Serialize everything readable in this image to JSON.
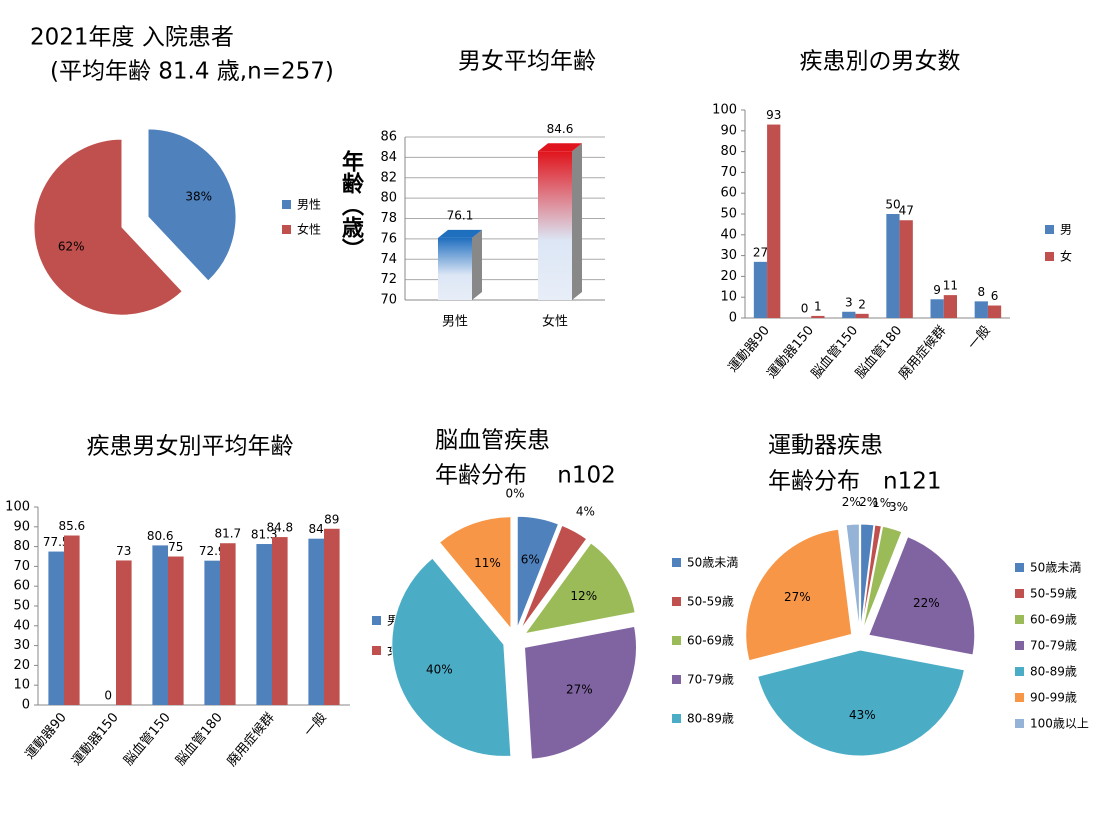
{
  "chart_data": [
    {
      "type": "pie",
      "title": "2021年度 入院患者",
      "subtitle": "(平均年齢 81.4 歳,n=257)",
      "categories": [
        "男性",
        "女性"
      ],
      "values": [
        38,
        62
      ],
      "value_labels": [
        "38%",
        "62%"
      ],
      "colors": [
        "#4f81bd",
        "#c0504d"
      ],
      "legend": "right"
    },
    {
      "type": "bar",
      "title": "男女平均年齢",
      "y_label": "年齢（歳）",
      "categories": [
        "男性",
        "女性"
      ],
      "values": [
        76.1,
        84.6
      ],
      "colors": [
        "#1f6fbf",
        "#e0141c"
      ],
      "ylim": [
        70,
        86
      ],
      "yticks": [
        70,
        72,
        74,
        76,
        78,
        80,
        82,
        84,
        86
      ],
      "grid": true
    },
    {
      "type": "bar",
      "title": "疾患別の男女数",
      "categories": [
        "運動器90",
        "運動器150",
        "脳血管150",
        "脳血管180",
        "廃用症候群",
        "一般"
      ],
      "series": [
        {
          "name": "男",
          "color": "#4f81bd",
          "values": [
            27,
            0,
            3,
            50,
            9,
            8
          ]
        },
        {
          "name": "女",
          "color": "#c0504d",
          "values": [
            93,
            1,
            2,
            47,
            11,
            6
          ]
        }
      ],
      "ylim": [
        0,
        100
      ],
      "yticks": [
        0,
        10,
        20,
        30,
        40,
        50,
        60,
        70,
        80,
        90,
        100
      ],
      "grid": false,
      "legend": "right"
    },
    {
      "type": "bar",
      "title": "疾患男女別平均年齢",
      "categories": [
        "運動器90",
        "運動器150",
        "脳血管150",
        "脳血管180",
        "廃用症候群",
        "一般"
      ],
      "series": [
        {
          "name": "男",
          "color": "#4f81bd",
          "values": [
            77.5,
            0,
            80.6,
            72.9,
            81.3,
            84
          ]
        },
        {
          "name": "女",
          "color": "#c0504d",
          "values": [
            85.6,
            73,
            75,
            81.7,
            84.8,
            89
          ]
        }
      ],
      "ylim": [
        0,
        100
      ],
      "yticks": [
        0,
        10,
        20,
        30,
        40,
        50,
        60,
        70,
        80,
        90,
        100
      ],
      "grid": false,
      "legend": "right"
    },
    {
      "type": "pie",
      "title": "脳血管疾患",
      "subtitle": "年齢分布　 n102",
      "categories": [
        "50歳未満",
        "50-59歳",
        "60-69歳",
        "70-79歳",
        "80-89歳",
        null,
        null
      ],
      "values": [
        6,
        4,
        12,
        27,
        40,
        11,
        0
      ],
      "value_labels": [
        "6%",
        "4%",
        "12%",
        "27%",
        "40%",
        "11%",
        "0%"
      ],
      "colors": [
        "#4f81bd",
        "#c0504d",
        "#9bbb59",
        "#8064a2",
        "#4bacc6",
        "#f79646",
        "#95b3d7"
      ],
      "legend": "right"
    },
    {
      "type": "pie",
      "title": "運動器疾患",
      "subtitle": "年齢分布　n121",
      "categories": [
        "50歳未満",
        "50-59歳",
        "60-69歳",
        "70-79歳",
        "80-89歳",
        "90-99歳",
        "100歳以上"
      ],
      "values": [
        2,
        1,
        3,
        22,
        43,
        27,
        2
      ],
      "value_labels": [
        "2%",
        "1%",
        "3%",
        "22%",
        "43%",
        "27%",
        "2%"
      ],
      "colors": [
        "#4f81bd",
        "#c0504d",
        "#9bbb59",
        "#8064a2",
        "#4bacc6",
        "#f79646",
        "#95b3d7"
      ],
      "legend": "right"
    }
  ]
}
